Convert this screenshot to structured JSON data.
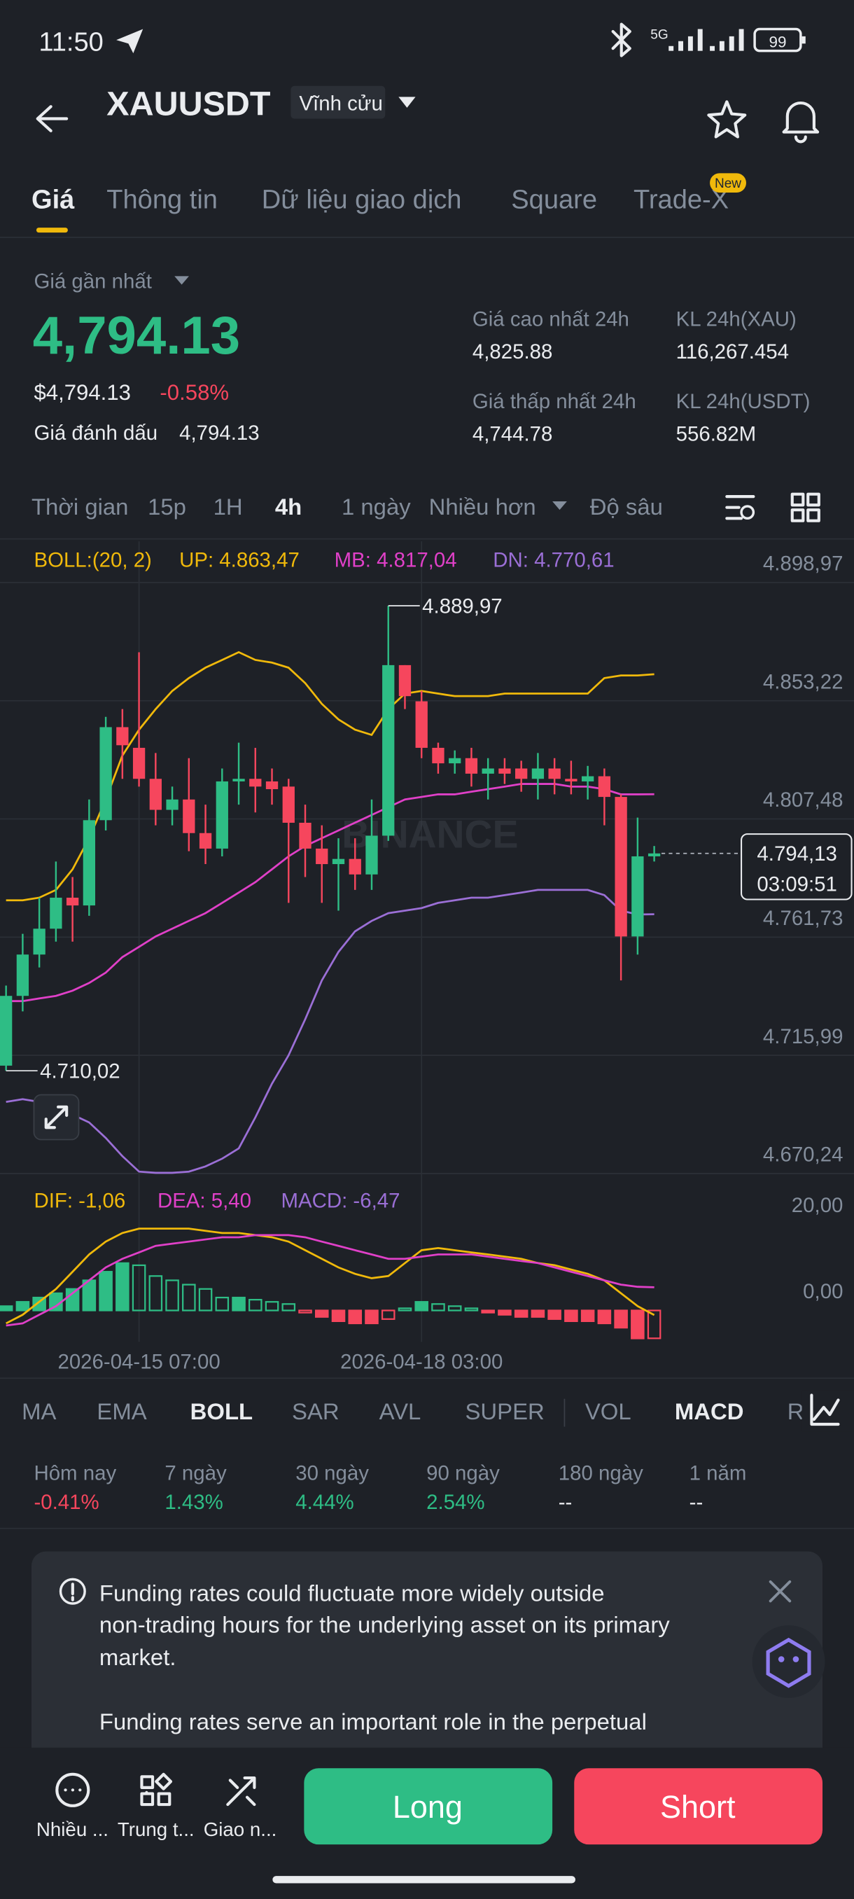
{
  "status_bar": {
    "time": "11:50",
    "network": "5G",
    "battery": "99"
  },
  "header": {
    "symbol": "XAUUSDT",
    "contract": "Vĩnh cửu"
  },
  "tabs": [
    "Giá",
    "Thông tin",
    "Dữ liệu giao dịch",
    "Square",
    "Trade-X"
  ],
  "tab_badge": "New",
  "price": {
    "label": "Giá gần nhất",
    "last": "4,794.13",
    "usd": "$4,794.13",
    "change": "-0.58%",
    "mark_label": "Giá đánh dấu",
    "mark": "4,794.13"
  },
  "stats": [
    {
      "label": "Giá cao nhất 24h",
      "value": "4,825.88"
    },
    {
      "label": "KL 24h(XAU)",
      "value": "116,267.454"
    },
    {
      "label": "Giá thấp nhất 24h",
      "value": "4,744.78"
    },
    {
      "label": "KL 24h(USDT)",
      "value": "556.82M"
    }
  ],
  "intervals": [
    "Thời gian",
    "15p",
    "1H",
    "4h",
    "1 ngày",
    "Nhiều hơn",
    "Độ sâu"
  ],
  "chart_data": [
    {
      "type": "candlestick",
      "legend_title": "BOLL:(20, 2)",
      "watermark": "BINANCE",
      "categories": [
        null,
        null,
        null,
        null,
        null,
        null,
        null,
        null,
        "2026-04-15 07:00",
        null,
        null,
        null,
        null,
        null,
        null,
        null,
        null,
        null,
        null,
        null,
        null,
        null,
        null,
        null,
        null,
        "2026-04-18 03:00",
        null,
        null,
        null,
        null,
        null,
        null,
        null,
        null,
        null,
        null,
        null,
        null,
        null,
        null
      ],
      "open": [
        4712,
        4739,
        4755,
        4765,
        4777,
        4774,
        4807,
        4843,
        4835,
        4823,
        4811,
        4815,
        4802,
        4796,
        4822,
        4823,
        4822,
        4820,
        4806,
        4796,
        4790,
        4792,
        4786,
        4801,
        4867,
        4853,
        4835,
        4829,
        4831,
        4825,
        4827,
        4827,
        4823,
        4827,
        4823,
        4822,
        4824,
        4816,
        4762,
        4793
      ],
      "high": [
        4743,
        4763,
        4777,
        4791,
        4785,
        4815,
        4847,
        4850,
        4872,
        4833,
        4820,
        4831,
        4813,
        4827,
        4837,
        4835,
        4827,
        4823,
        4813,
        4805,
        4800,
        4800,
        4815,
        4889.97,
        4867,
        4857,
        4837,
        4834,
        4835,
        4831,
        4831,
        4830,
        4833,
        4831,
        4830,
        4828,
        4827,
        4817,
        4808,
        4797
      ],
      "low": [
        4710.02,
        4733,
        4750,
        4760,
        4760,
        4770,
        4803,
        4823,
        4820,
        4805,
        4805,
        4795,
        4790,
        4793,
        4813,
        4810,
        4813,
        4775,
        4785,
        4775,
        4772,
        4780,
        4780,
        4799,
        4850,
        4831,
        4825,
        4825,
        4820,
        4815,
        4821,
        4818,
        4815,
        4817,
        4817,
        4815,
        4805,
        4745,
        4755,
        4791
      ],
      "close": [
        4739,
        4755,
        4765,
        4777,
        4774,
        4807,
        4843,
        4836,
        4823,
        4811,
        4815,
        4802,
        4796,
        4822,
        4823,
        4820,
        4819,
        4806,
        4796,
        4790,
        4792,
        4786,
        4801,
        4867,
        4855,
        4835,
        4829,
        4831,
        4825,
        4827,
        4825,
        4823,
        4827,
        4823,
        4822,
        4824,
        4816,
        4762,
        4793,
        4794.13
      ],
      "up_color": "#2ebd85",
      "down_color": "#f6465d",
      "series": [
        {
          "name": "UP: 4.863,47",
          "color": "#f0b90b",
          "values": [
            4776,
            4776,
            4777,
            4780,
            4788,
            4800,
            4815,
            4832,
            4842,
            4850,
            4857,
            4862,
            4866,
            4869,
            4872,
            4869,
            4868,
            4866,
            4860,
            4852,
            4846,
            4842,
            4840,
            4850,
            4856,
            4857,
            4856,
            4855,
            4855,
            4855,
            4856,
            4856,
            4856,
            4856,
            4856,
            4856,
            4862,
            4863,
            4863,
            4863.47
          ]
        },
        {
          "name": "MB: 4.817,04",
          "color": "#e040c8",
          "values": [
            4737,
            4737,
            4738,
            4739,
            4741,
            4744,
            4748,
            4754,
            4758,
            4762,
            4765,
            4768,
            4771,
            4775,
            4779,
            4783,
            4788,
            4793,
            4797,
            4800,
            4803,
            4806,
            4809,
            4812,
            4815,
            4816,
            4817,
            4817,
            4818,
            4819,
            4820,
            4821,
            4821,
            4821,
            4820,
            4820,
            4819,
            4817,
            4817,
            4817.04
          ]
        },
        {
          "name": "DN: 4.770,61",
          "color": "#9b6fd6",
          "values": [
            4698,
            4699,
            4698,
            4696,
            4693,
            4690,
            4684,
            4677,
            4671,
            4670.5,
            4670.5,
            4671,
            4673,
            4676,
            4680,
            4692,
            4705,
            4716,
            4730,
            4745,
            4756,
            4764,
            4768,
            4771,
            4772,
            4773,
            4775,
            4776,
            4777,
            4777,
            4778,
            4779,
            4780,
            4780,
            4780,
            4780,
            4778,
            4772,
            4770.5,
            4770.61
          ]
        }
      ],
      "ylim": [
        4670.24,
        4914.9
      ],
      "yticks": [
        {
          "value": 4898.97,
          "label": "4.898,97"
        },
        {
          "value": 4853.22,
          "label": "4.853,22"
        },
        {
          "value": 4807.48,
          "label": "4.807,48"
        },
        {
          "value": 4761.73,
          "label": "4.761,73"
        },
        {
          "value": 4715.99,
          "label": "4.715,99"
        },
        {
          "value": 4670.24,
          "label": "4.670,24"
        }
      ],
      "annotations": [
        {
          "label": "4.889,97",
          "value": 4889.97
        },
        {
          "label": "4.710,02",
          "value": 4710.02
        }
      ],
      "last_price": {
        "value": 4794.13,
        "label": "4.794,13",
        "countdown": "03:09:51"
      },
      "grid": true
    },
    {
      "type": "macd",
      "series": [
        {
          "name": "DIF: -1,06",
          "color": "#f0b90b",
          "values": [
            -3,
            -1,
            2,
            5,
            9,
            13,
            16,
            18,
            19,
            19,
            19,
            19,
            18.5,
            18,
            18,
            17.5,
            17,
            16,
            14,
            12,
            10,
            8.5,
            7.5,
            8,
            11,
            14,
            14.5,
            14,
            13.5,
            13,
            12.5,
            12,
            11,
            10.5,
            9.5,
            8.5,
            7,
            4,
            1,
            -1.06
          ]
        },
        {
          "name": "DEA: 5,40",
          "color": "#e040c8",
          "values": [
            -3.5,
            -3,
            -1,
            1,
            4,
            7,
            10,
            12,
            13.5,
            15,
            15.5,
            16,
            16.5,
            17,
            17,
            17.5,
            17.5,
            17.5,
            17,
            16,
            15,
            14,
            13,
            12,
            12,
            12.5,
            13,
            13,
            13,
            12.5,
            12,
            11.5,
            11,
            10,
            9,
            8,
            7,
            6,
            5.5,
            5.4
          ]
        },
        {
          "name": "MACD: -6,47",
          "color": "#9b6fd6",
          "values": [
            1,
            2,
            3,
            4,
            5,
            7,
            9,
            11,
            10.5,
            8,
            7,
            6,
            5,
            3,
            3,
            2.5,
            2,
            1.5,
            -0.5,
            -1.5,
            -2.5,
            -3,
            -3,
            -2,
            0.5,
            2,
            1.5,
            1,
            0.5,
            -0.5,
            -1,
            -1.5,
            -1.5,
            -2,
            -2.5,
            -2.5,
            -3,
            -4,
            -6.5,
            -6.47
          ]
        }
      ],
      "ylim": [
        -7.3,
        31.8
      ],
      "yticks": [
        {
          "value": 20,
          "label": "20,00"
        },
        {
          "value": 0,
          "label": "0,00"
        }
      ]
    }
  ],
  "indicators": [
    "MA",
    "EMA",
    "BOLL",
    "SAR",
    "AVL",
    "SUPER",
    "VOL",
    "MACD",
    "R"
  ],
  "performance": [
    {
      "period": "Hôm nay",
      "value": "-0.41%"
    },
    {
      "period": "7 ngày",
      "value": "1.43%"
    },
    {
      "period": "30 ngày",
      "value": "4.44%"
    },
    {
      "period": "90 ngày",
      "value": "2.54%"
    },
    {
      "period": "180 ngày",
      "value": "--"
    },
    {
      "period": "1 năm",
      "value": "--"
    }
  ],
  "notice": {
    "lines": [
      "Funding rates could fluctuate more widely outside",
      "non-trading hours for the underlying asset on its primary",
      "market.",
      "Funding rates serve an important role in the perpetual"
    ]
  },
  "bottom_bar": {
    "items": [
      "Nhiều ...",
      "Trung t...",
      "Giao n..."
    ],
    "long": "Long",
    "short": "Short"
  }
}
